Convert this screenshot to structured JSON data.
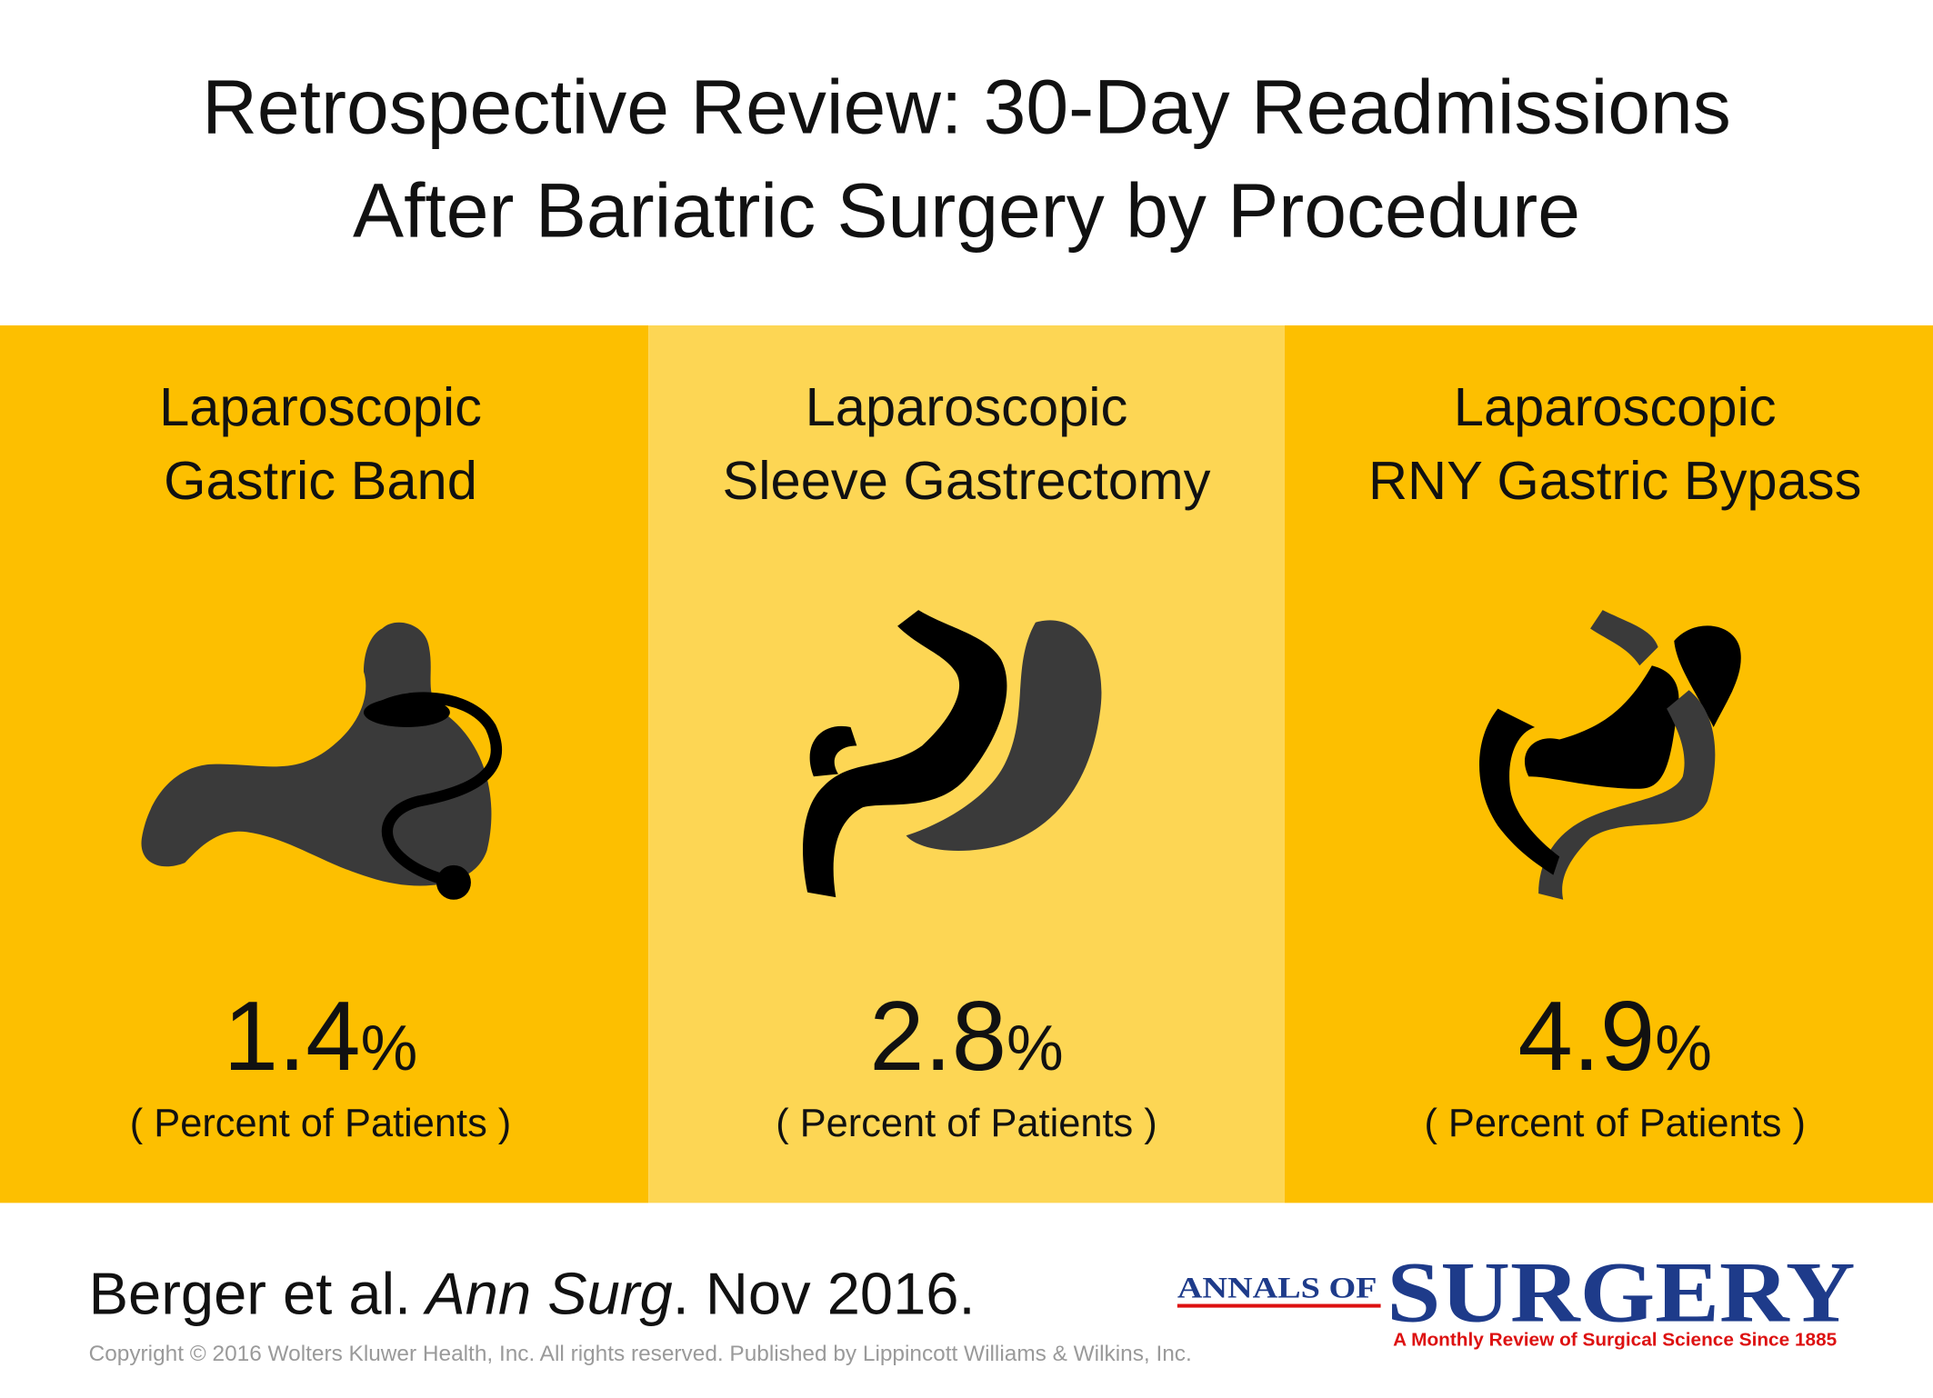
{
  "title_lines": [
    "Retrospective Review: 30-Day Readmissions",
    "After Bariatric Surgery by Procedure"
  ],
  "panels": [
    {
      "label_lines": [
        "Laparoscopic",
        "Gastric Band"
      ],
      "value": "1.4",
      "unit": "%",
      "note": "( Percent of Patients )"
    },
    {
      "label_lines": [
        "Laparoscopic",
        "Sleeve Gastrectomy"
      ],
      "value": "2.8",
      "unit": "%",
      "note": "( Percent of Patients )"
    },
    {
      "label_lines": [
        "Laparoscopic",
        "RNY Gastric Bypass"
      ],
      "value": "4.9",
      "unit": "%",
      "note": "( Percent of Patients )"
    }
  ],
  "citation": {
    "authors": "Berger et al.",
    "journal": "Ann Surg",
    "date": ". Nov 2016."
  },
  "copyright": "Copyright © 2016 Wolters Kluwer Health, Inc. All rights reserved.  Published by Lippincott Williams & Wilkins, Inc.",
  "logo": {
    "prefix": "ANNALS OF",
    "name": "SURGERY",
    "tagline": "A Monthly Review of Surgical Science Since 1885"
  }
}
